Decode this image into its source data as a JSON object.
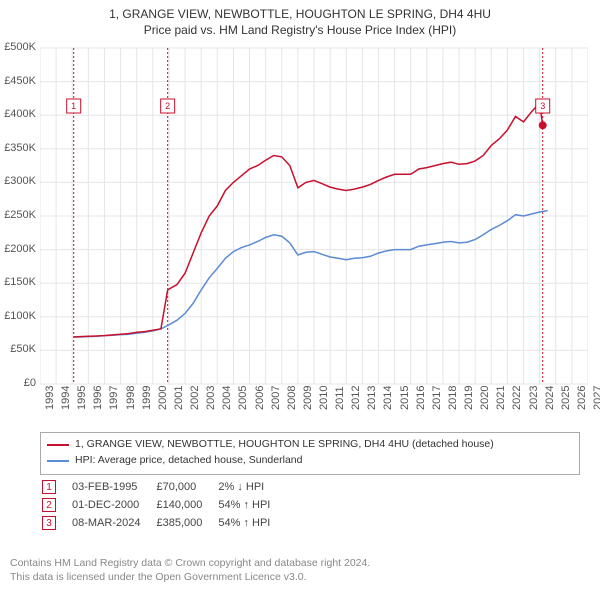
{
  "title_line1": "1, GRANGE VIEW, NEWBOTTLE, HOUGHTON LE SPRING, DH4 4HU",
  "title_line2": "Price paid vs. HM Land Registry's House Price Index (HPI)",
  "chart": {
    "type": "line",
    "background_color": "#ffffff",
    "grid_color": "#e5e5e5",
    "x_years": [
      1993,
      1994,
      1995,
      1996,
      1997,
      1998,
      1999,
      2000,
      2001,
      2002,
      2003,
      2004,
      2005,
      2006,
      2007,
      2008,
      2009,
      2010,
      2011,
      2012,
      2013,
      2014,
      2015,
      2016,
      2017,
      2018,
      2019,
      2020,
      2021,
      2022,
      2023,
      2024,
      2025,
      2026,
      2027
    ],
    "x_min_year": 1993,
    "x_max_year": 2027,
    "ylim": [
      0,
      500000
    ],
    "ytick_step": 50000,
    "ytick_labels": [
      "£0",
      "£50K",
      "£100K",
      "£150K",
      "£200K",
      "£250K",
      "£300K",
      "£350K",
      "£400K",
      "£450K",
      "£500K"
    ],
    "series_red": {
      "label": "1, GRANGE VIEW, NEWBOTTLE, HOUGHTON LE SPRING, DH4 4HU (detached house)",
      "color": "#c8102e",
      "data": [
        [
          1995.09,
          70000
        ],
        [
          1995.5,
          70500
        ],
        [
          1996,
          71000
        ],
        [
          1996.5,
          71500
        ],
        [
          1997,
          72000
        ],
        [
          1997.5,
          73000
        ],
        [
          1998,
          74000
        ],
        [
          1998.5,
          75000
        ],
        [
          1999,
          77000
        ],
        [
          1999.5,
          78000
        ],
        [
          2000,
          80000
        ],
        [
          2000.5,
          82000
        ],
        [
          2000.92,
          140000
        ],
        [
          2001.5,
          148000
        ],
        [
          2002,
          165000
        ],
        [
          2002.5,
          195000
        ],
        [
          2003,
          225000
        ],
        [
          2003.5,
          250000
        ],
        [
          2004,
          265000
        ],
        [
          2004.5,
          288000
        ],
        [
          2005,
          300000
        ],
        [
          2005.5,
          310000
        ],
        [
          2006,
          320000
        ],
        [
          2006.5,
          325000
        ],
        [
          2007,
          333000
        ],
        [
          2007.5,
          340000
        ],
        [
          2008,
          338000
        ],
        [
          2008.5,
          325000
        ],
        [
          2009,
          292000
        ],
        [
          2009.5,
          300000
        ],
        [
          2010,
          303000
        ],
        [
          2010.5,
          298000
        ],
        [
          2011,
          293000
        ],
        [
          2011.5,
          290000
        ],
        [
          2012,
          288000
        ],
        [
          2012.5,
          290000
        ],
        [
          2013,
          293000
        ],
        [
          2013.5,
          297000
        ],
        [
          2014,
          303000
        ],
        [
          2014.5,
          308000
        ],
        [
          2015,
          312000
        ],
        [
          2015.5,
          312000
        ],
        [
          2016,
          312000
        ],
        [
          2016.5,
          320000
        ],
        [
          2017,
          322000
        ],
        [
          2017.5,
          325000
        ],
        [
          2018,
          328000
        ],
        [
          2018.5,
          330000
        ],
        [
          2019,
          327000
        ],
        [
          2019.5,
          328000
        ],
        [
          2020,
          332000
        ],
        [
          2020.5,
          340000
        ],
        [
          2021,
          355000
        ],
        [
          2021.5,
          365000
        ],
        [
          2022,
          378000
        ],
        [
          2022.5,
          398000
        ],
        [
          2023,
          390000
        ],
        [
          2023.5,
          405000
        ],
        [
          2024,
          418000
        ],
        [
          2024.19,
          385000
        ]
      ]
    },
    "series_blue": {
      "label": "HPI: Average price, detached house, Sunderland",
      "color": "#5b8bd4",
      "data": [
        [
          1995.09,
          70000
        ],
        [
          1995.5,
          70000
        ],
        [
          1996,
          70500
        ],
        [
          1996.5,
          71000
        ],
        [
          1997,
          72000
        ],
        [
          1997.5,
          72500
        ],
        [
          1998,
          73500
        ],
        [
          1998.5,
          74000
        ],
        [
          1999,
          75500
        ],
        [
          1999.5,
          77000
        ],
        [
          2000,
          79000
        ],
        [
          2000.5,
          82000
        ],
        [
          2001,
          88000
        ],
        [
          2001.5,
          95000
        ],
        [
          2002,
          105000
        ],
        [
          2002.5,
          120000
        ],
        [
          2003,
          140000
        ],
        [
          2003.5,
          158000
        ],
        [
          2004,
          172000
        ],
        [
          2004.5,
          187000
        ],
        [
          2005,
          197000
        ],
        [
          2005.5,
          203000
        ],
        [
          2006,
          207000
        ],
        [
          2006.5,
          212000
        ],
        [
          2007,
          218000
        ],
        [
          2007.5,
          222000
        ],
        [
          2008,
          220000
        ],
        [
          2008.5,
          210000
        ],
        [
          2009,
          192000
        ],
        [
          2009.5,
          196000
        ],
        [
          2010,
          197000
        ],
        [
          2010.5,
          193000
        ],
        [
          2011,
          189000
        ],
        [
          2011.5,
          187000
        ],
        [
          2012,
          185000
        ],
        [
          2012.5,
          187000
        ],
        [
          2013,
          188000
        ],
        [
          2013.5,
          190000
        ],
        [
          2014,
          195000
        ],
        [
          2014.5,
          198000
        ],
        [
          2015,
          200000
        ],
        [
          2015.5,
          200000
        ],
        [
          2016,
          200000
        ],
        [
          2016.5,
          205000
        ],
        [
          2017,
          207000
        ],
        [
          2017.5,
          209000
        ],
        [
          2018,
          211000
        ],
        [
          2018.5,
          212000
        ],
        [
          2019,
          210000
        ],
        [
          2019.5,
          211000
        ],
        [
          2020,
          215000
        ],
        [
          2020.5,
          222000
        ],
        [
          2021,
          230000
        ],
        [
          2021.5,
          236000
        ],
        [
          2022,
          243000
        ],
        [
          2022.5,
          252000
        ],
        [
          2023,
          250000
        ],
        [
          2023.5,
          253000
        ],
        [
          2024,
          256000
        ],
        [
          2024.5,
          258000
        ]
      ]
    },
    "markers": [
      {
        "n": "1",
        "year": 1995.09,
        "ypx": 55
      },
      {
        "n": "2",
        "year": 2000.92,
        "ypx": 55
      },
      {
        "n": "3",
        "year": 2024.19,
        "ypx": 55
      }
    ],
    "last_point": {
      "year": 2024.19,
      "value": 385000
    },
    "series_line_width": 1.5,
    "marker_box_color": "#c8102e"
  },
  "legend": {
    "items": [
      {
        "color": "#c8102e",
        "label": "1, GRANGE VIEW, NEWBOTTLE, HOUGHTON LE SPRING, DH4 4HU (detached house)"
      },
      {
        "color": "#5b8bd4",
        "label": "HPI: Average price, detached house, Sunderland"
      }
    ]
  },
  "events": [
    {
      "n": "1",
      "date": "03-FEB-1995",
      "price": "£70,000",
      "pct": "2%",
      "arrow": "↓",
      "suffix": "HPI"
    },
    {
      "n": "2",
      "date": "01-DEC-2000",
      "price": "£140,000",
      "pct": "54%",
      "arrow": "↑",
      "suffix": "HPI"
    },
    {
      "n": "3",
      "date": "08-MAR-2024",
      "price": "£385,000",
      "pct": "54%",
      "arrow": "↑",
      "suffix": "HPI"
    }
  ],
  "footer_line1": "Contains HM Land Registry data © Crown copyright and database right 2024.",
  "footer_line2": "This data is licensed under the Open Government Licence v3.0."
}
